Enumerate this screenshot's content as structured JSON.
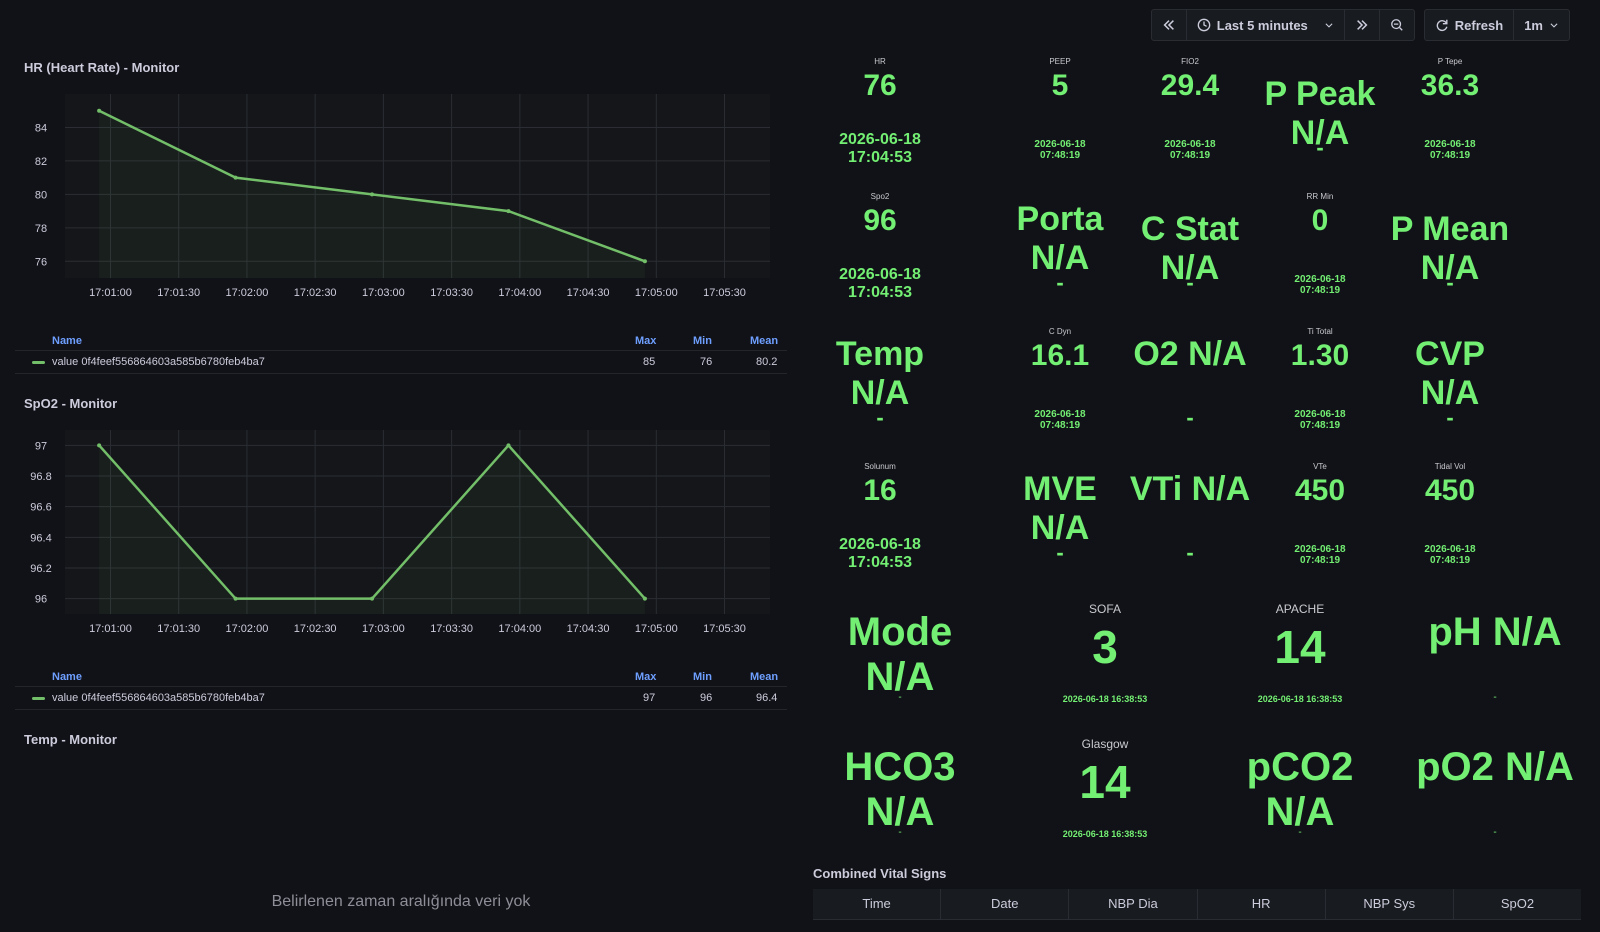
{
  "toolbar": {
    "time_range_label": "Last 5 minutes",
    "refresh_label": "Refresh",
    "refresh_interval": "1m"
  },
  "panels": {
    "hr": {
      "title": "HR (Heart Rate) - Monitor",
      "legend": {
        "name_header": "Name",
        "max_header": "Max",
        "min_header": "Min",
        "mean_header": "Mean",
        "series_name": "value 0f4feef556864603a585b6780feb4ba7",
        "max": "85",
        "min": "76",
        "mean": "80.2"
      }
    },
    "spo2": {
      "title": "SpO2 - Monitor",
      "legend": {
        "name_header": "Name",
        "max_header": "Max",
        "min_header": "Min",
        "mean_header": "Mean",
        "series_name": "value 0f4feef556864603a585b6780feb4ba7",
        "max": "97",
        "min": "96",
        "mean": "96.4"
      }
    },
    "temp": {
      "title": "Temp - Monitor",
      "no_data": "Belirlenen zaman aralığında veri yok"
    }
  },
  "chart_data": [
    {
      "type": "line",
      "title": "HR (Heart Rate) - Monitor",
      "x_ticks": [
        "17:01:00",
        "17:01:30",
        "17:02:00",
        "17:02:30",
        "17:03:00",
        "17:03:30",
        "17:04:00",
        "17:04:30",
        "17:05:00",
        "17:05:30"
      ],
      "y_ticks": [
        "84",
        "82",
        "80",
        "78",
        "76"
      ],
      "ylim": [
        75,
        86
      ],
      "series": [
        {
          "x": [
            "17:00:55",
            "17:01:55",
            "17:02:55",
            "17:03:55",
            "17:04:55"
          ],
          "values": [
            85,
            81,
            80,
            79,
            76
          ]
        }
      ],
      "grid": true,
      "legend": "bottom"
    },
    {
      "type": "line",
      "title": "SpO2 - Monitor",
      "x_ticks": [
        "17:01:00",
        "17:01:30",
        "17:02:00",
        "17:02:30",
        "17:03:00",
        "17:03:30",
        "17:04:00",
        "17:04:30",
        "17:05:00",
        "17:05:30"
      ],
      "y_ticks": [
        "97",
        "96.8",
        "96.6",
        "96.4",
        "96.2",
        "96"
      ],
      "ylim": [
        95.9,
        97.1
      ],
      "series": [
        {
          "x": [
            "17:00:55",
            "17:01:55",
            "17:02:55",
            "17:03:55",
            "17:04:55"
          ],
          "values": [
            97,
            96,
            96,
            97,
            96
          ]
        }
      ],
      "grid": true,
      "legend": "bottom"
    }
  ],
  "stats": [
    {
      "key": "hr",
      "label": "HR",
      "value": "76",
      "time": "2026-06-18\n17:04:53"
    },
    {
      "key": "peep",
      "label": "PEEP",
      "value": "5",
      "time": "2026-06-18\n07:48:19"
    },
    {
      "key": "fio2",
      "label": "FIO2",
      "value": "29.4",
      "time": "2026-06-18\n07:48:19"
    },
    {
      "key": "p_peak",
      "value": "P Peak N/A",
      "time": "-"
    },
    {
      "key": "p_tepe",
      "label": "P Tepe",
      "value": "36.3",
      "time": "2026-06-18\n07:48:19"
    },
    {
      "key": "spo2",
      "label": "Spo2",
      "value": "96",
      "time": "2026-06-18\n17:04:53"
    },
    {
      "key": "porta",
      "value": "Porta N/A",
      "time": "-"
    },
    {
      "key": "c_stat",
      "value": "C Stat N/A",
      "time": "-"
    },
    {
      "key": "rr_min",
      "label": "RR Min",
      "value": "0",
      "time": "2026-06-18\n07:48:19"
    },
    {
      "key": "p_mean",
      "value": "P Mean N/A",
      "time": "-"
    },
    {
      "key": "temp",
      "value": "Temp N/A",
      "time": "-"
    },
    {
      "key": "c_dyn",
      "label": "C Dyn",
      "value": "16.1",
      "time": "2026-06-18\n07:48:19"
    },
    {
      "key": "o2",
      "value": "O2 N/A",
      "time": "-"
    },
    {
      "key": "ti_total",
      "label": "Ti Total",
      "value": "1.30",
      "time": "2026-06-18\n07:48:19"
    },
    {
      "key": "cvp",
      "value": "CVP N/A",
      "time": "-"
    },
    {
      "key": "solunum",
      "label": "Solunum",
      "value": "16",
      "time": "2026-06-18\n17:04:53"
    },
    {
      "key": "mve",
      "value": "MVE N/A",
      "time": "-"
    },
    {
      "key": "vti",
      "value": "VTi N/A",
      "time": "-"
    },
    {
      "key": "vte",
      "label": "VTe",
      "value": "450",
      "time": "2026-06-18\n07:48:19"
    },
    {
      "key": "tidal_vol",
      "label": "Tidal Vol",
      "value": "450",
      "time": "2026-06-18\n07:48:19"
    },
    {
      "key": "mode",
      "value": "Mode N/A",
      "time": "-"
    },
    {
      "key": "sofa",
      "label": "SOFA",
      "value": "3",
      "time": "2026-06-18 16:38:53"
    },
    {
      "key": "apache",
      "label": "APACHE",
      "value": "14",
      "time": "2026-06-18 16:38:53"
    },
    {
      "key": "ph",
      "value": "pH N/A",
      "time": "-"
    },
    {
      "key": "hco3",
      "value": "HCO3 N/A",
      "time": "-"
    },
    {
      "key": "glasgow",
      "label": "Glasgow",
      "value": "14",
      "time": "2026-06-18 16:38:53"
    },
    {
      "key": "pco2",
      "value": "pCO2 N/A",
      "time": "-"
    },
    {
      "key": "po2",
      "value": "pO2 N/A",
      "time": "-"
    }
  ],
  "table": {
    "title": "Combined Vital Signs",
    "columns": [
      "Time",
      "Date",
      "NBP Dia",
      "HR",
      "NBP Sys",
      "SpO2"
    ]
  },
  "colors": {
    "accent_green": "#73ef73",
    "series_green": "#73bf69",
    "legend_blue": "#6e9fff",
    "background": "#111217"
  }
}
